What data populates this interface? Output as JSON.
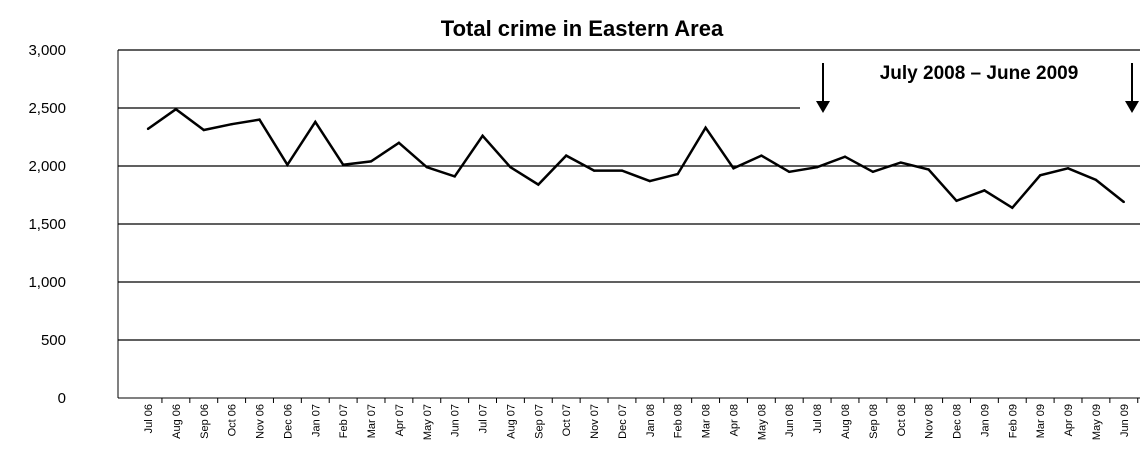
{
  "chart_data": {
    "type": "line",
    "title": "Total crime in Eastern Area",
    "annotation": "July 2008 – June 2009",
    "xlabel": "",
    "ylabel": "",
    "ylim": [
      0,
      3000
    ],
    "yticks": [
      "0",
      "500",
      "1,000",
      "1,500",
      "2,000",
      "2,500",
      "3,000"
    ],
    "grid": true,
    "legend": "none",
    "color": "#000000",
    "categories": [
      "Jul 06",
      "Aug 06",
      "Sep 06",
      "Oct 06",
      "Nov 06",
      "Dec 06",
      "Jan 07",
      "Feb 07",
      "Mar 07",
      "Apr 07",
      "May 07",
      "Jun 07",
      "Jul 07",
      "Aug 07",
      "Sep 07",
      "Oct 07",
      "Nov 07",
      "Dec 07",
      "Jan 08",
      "Feb 08",
      "Mar 08",
      "Apr 08",
      "May 08",
      "Jun 08",
      "Jul 08",
      "Aug 08",
      "Sep 08",
      "Oct 08",
      "Nov 08",
      "Dec 08",
      "Jan 09",
      "Feb 09",
      "Mar 09",
      "Apr 09",
      "May 09",
      "Jun 09"
    ],
    "values": [
      2320,
      2490,
      2310,
      2360,
      2400,
      2010,
      2380,
      2010,
      2040,
      2200,
      1990,
      1910,
      2260,
      1990,
      1840,
      2090,
      1960,
      1960,
      1870,
      1930,
      2330,
      1980,
      2090,
      1950,
      1990,
      2080,
      1950,
      2030,
      1970,
      1700,
      1790,
      1640,
      1920,
      1980,
      1880,
      1690
    ]
  }
}
